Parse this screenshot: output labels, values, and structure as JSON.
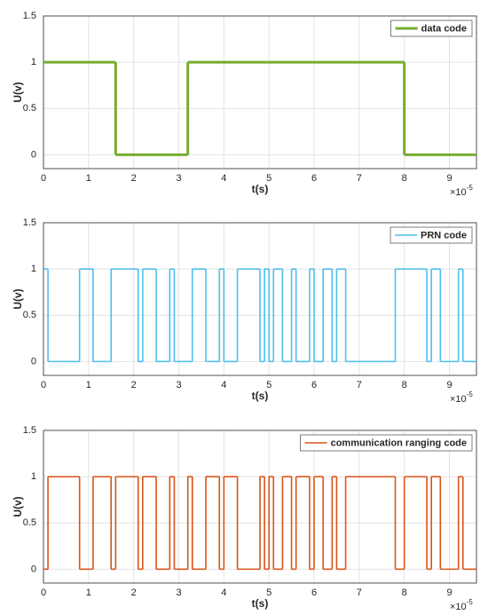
{
  "chart_data": [
    {
      "type": "step",
      "xlabel": "t(s)",
      "ylabel": "U(v)",
      "x_exponent_base": "×10",
      "x_exponent_power": "-5",
      "xlim": [
        0,
        9.6
      ],
      "ylim": [
        -0.15,
        1.5
      ],
      "xticks": [
        0,
        1,
        2,
        3,
        4,
        5,
        6,
        7,
        8,
        9
      ],
      "yticks": [
        0,
        0.5,
        1,
        1.5
      ],
      "grid": true,
      "legend": "upper right",
      "series": [
        {
          "name": "data code",
          "color": "#77ac30",
          "x": [
            0,
            1.6,
            3.2,
            8
          ],
          "values": [
            1,
            0,
            1,
            0
          ]
        }
      ]
    },
    {
      "type": "step",
      "xlabel": "t(s)",
      "ylabel": "U(v)",
      "x_exponent_base": "×10",
      "x_exponent_power": "-5",
      "xlim": [
        0,
        9.6
      ],
      "ylim": [
        -0.15,
        1.5
      ],
      "xticks": [
        0,
        1,
        2,
        3,
        4,
        5,
        6,
        7,
        8,
        9
      ],
      "yticks": [
        0,
        0.5,
        1,
        1.5
      ],
      "grid": true,
      "legend": "upper right",
      "series": [
        {
          "name": "PRN code",
          "color": "#4dbeee",
          "x": [
            0,
            0.1,
            0.8,
            1.1,
            1.5,
            2.1,
            2.2,
            2.5,
            2.8,
            2.9,
            3.3,
            3.6,
            3.9,
            4.0,
            4.3,
            4.8,
            4.9,
            5.0,
            5.1,
            5.3,
            5.5,
            5.6,
            5.9,
            6.0,
            6.2,
            6.4,
            6.5,
            6.7,
            7.8,
            8.5,
            8.6,
            8.8,
            9.2,
            9.3
          ],
          "values": [
            1,
            0,
            1,
            0,
            1,
            0,
            1,
            0,
            1,
            0,
            1,
            0,
            1,
            0,
            1,
            0,
            1,
            0,
            1,
            0,
            1,
            0,
            1,
            0,
            1,
            0,
            1,
            0,
            1,
            0,
            1,
            0,
            1,
            0
          ]
        }
      ]
    },
    {
      "type": "step",
      "xlabel": "t(s)",
      "ylabel": "U(v)",
      "x_exponent_base": "×10",
      "x_exponent_power": "-5",
      "xlim": [
        0,
        9.6
      ],
      "ylim": [
        -0.15,
        1.5
      ],
      "xticks": [
        0,
        1,
        2,
        3,
        4,
        5,
        6,
        7,
        8,
        9
      ],
      "yticks": [
        0,
        0.5,
        1,
        1.5
      ],
      "grid": true,
      "legend": "upper right",
      "series": [
        {
          "name": "communication ranging code",
          "color": "#d95319",
          "x": [
            0,
            0.1,
            0.8,
            1.1,
            1.5,
            1.6,
            2.1,
            2.2,
            2.5,
            2.8,
            2.9,
            3.2,
            3.3,
            3.6,
            3.9,
            4.0,
            4.3,
            4.8,
            4.9,
            5.0,
            5.1,
            5.3,
            5.5,
            5.6,
            5.9,
            6.0,
            6.2,
            6.4,
            6.5,
            6.7,
            7.8,
            8.0,
            8.5,
            8.6,
            8.8,
            9.2,
            9.3
          ],
          "values": [
            0,
            1,
            0,
            1,
            0,
            1,
            0,
            1,
            0,
            1,
            0,
            1,
            0,
            1,
            0,
            1,
            0,
            1,
            0,
            1,
            0,
            1,
            0,
            1,
            0,
            1,
            0,
            1,
            0,
            1,
            0,
            1,
            0,
            1,
            0,
            1,
            0
          ]
        }
      ]
    }
  ]
}
